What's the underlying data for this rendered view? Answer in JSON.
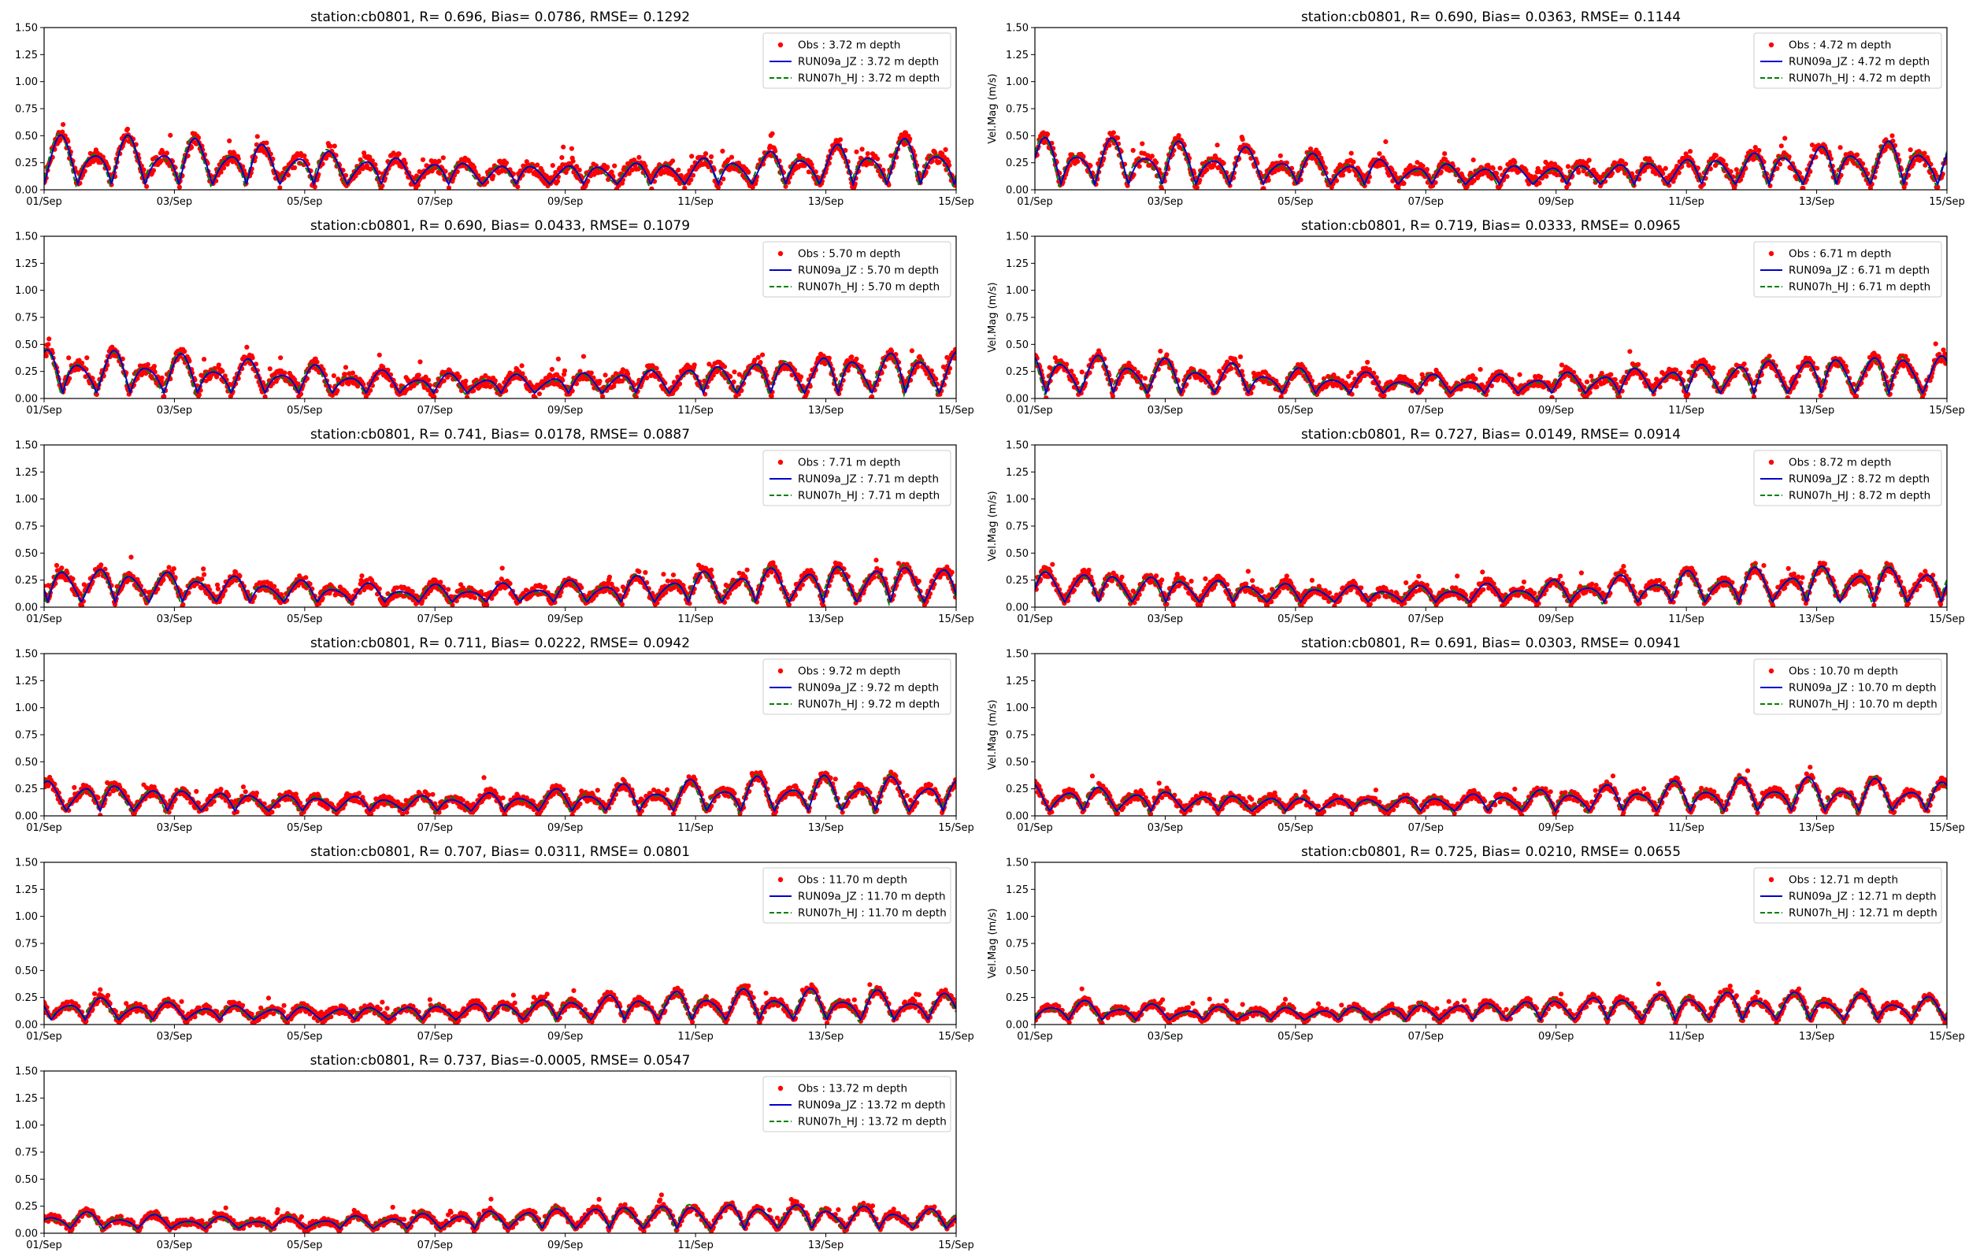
{
  "figure": {
    "background": "#ffffff"
  },
  "styles": {
    "obs_color": "#ff0000",
    "run09_color": "#0000cc",
    "run07_color": "#008000"
  },
  "chart_data": [
    {
      "type": "line",
      "title": "station:cb0801, R= 0.696, Bias= 0.0786, RMSE= 0.1292",
      "ylabel": "",
      "ylim": [
        0,
        1.5
      ],
      "yticks": [
        "0.00",
        "0.25",
        "0.50",
        "0.75",
        "1.00",
        "1.25",
        "1.50"
      ],
      "xticks": [
        "01/Sep",
        "03/Sep",
        "05/Sep",
        "07/Sep",
        "09/Sep",
        "11/Sep",
        "13/Sep",
        "15/Sep"
      ],
      "legend_position": "top-right",
      "series": [
        {
          "name": "Obs : 3.72 m depth",
          "style": "dots"
        },
        {
          "name": "RUN09a_JZ : 3.72 m depth",
          "style": "solid"
        },
        {
          "name": "RUN07h_HJ : 3.72 m depth",
          "style": "dashed"
        }
      ]
    },
    {
      "type": "line",
      "title": "station:cb0801, R= 0.690, Bias= 0.0363, RMSE= 0.1144",
      "ylabel": "Vel.Mag (m/s)",
      "ylim": [
        0,
        1.5
      ],
      "yticks": [
        "0.00",
        "0.25",
        "0.50",
        "0.75",
        "1.00",
        "1.25",
        "1.50"
      ],
      "xticks": [
        "01/Sep",
        "03/Sep",
        "05/Sep",
        "07/Sep",
        "09/Sep",
        "11/Sep",
        "13/Sep",
        "15/Sep"
      ],
      "legend_position": "top-right",
      "series": [
        {
          "name": "Obs : 4.72 m depth",
          "style": "dots"
        },
        {
          "name": "RUN09a_JZ : 4.72 m depth",
          "style": "solid"
        },
        {
          "name": "RUN07h_HJ : 4.72 m depth",
          "style": "dashed"
        }
      ]
    },
    {
      "type": "line",
      "title": "station:cb0801, R= 0.690, Bias= 0.0433, RMSE= 0.1079",
      "ylabel": "",
      "ylim": [
        0,
        1.5
      ],
      "yticks": [
        "0.00",
        "0.25",
        "0.50",
        "0.75",
        "1.00",
        "1.25",
        "1.50"
      ],
      "xticks": [
        "01/Sep",
        "03/Sep",
        "05/Sep",
        "07/Sep",
        "09/Sep",
        "11/Sep",
        "13/Sep",
        "15/Sep"
      ],
      "legend_position": "top-right",
      "series": [
        {
          "name": "Obs : 5.70 m depth",
          "style": "dots"
        },
        {
          "name": "RUN09a_JZ : 5.70 m depth",
          "style": "solid"
        },
        {
          "name": "RUN07h_HJ : 5.70 m depth",
          "style": "dashed"
        }
      ]
    },
    {
      "type": "line",
      "title": "station:cb0801, R= 0.719, Bias= 0.0333, RMSE= 0.0965",
      "ylabel": "Vel.Mag (m/s)",
      "ylim": [
        0,
        1.5
      ],
      "yticks": [
        "0.00",
        "0.25",
        "0.50",
        "0.75",
        "1.00",
        "1.25",
        "1.50"
      ],
      "xticks": [
        "01/Sep",
        "03/Sep",
        "05/Sep",
        "07/Sep",
        "09/Sep",
        "11/Sep",
        "13/Sep",
        "15/Sep"
      ],
      "legend_position": "top-right",
      "series": [
        {
          "name": "Obs : 6.71 m depth",
          "style": "dots"
        },
        {
          "name": "RUN09a_JZ : 6.71 m depth",
          "style": "solid"
        },
        {
          "name": "RUN07h_HJ : 6.71 m depth",
          "style": "dashed"
        }
      ]
    },
    {
      "type": "line",
      "title": "station:cb0801, R= 0.741, Bias= 0.0178, RMSE= 0.0887",
      "ylabel": "",
      "ylim": [
        0,
        1.5
      ],
      "yticks": [
        "0.00",
        "0.25",
        "0.50",
        "0.75",
        "1.00",
        "1.25",
        "1.50"
      ],
      "xticks": [
        "01/Sep",
        "03/Sep",
        "05/Sep",
        "07/Sep",
        "09/Sep",
        "11/Sep",
        "13/Sep",
        "15/Sep"
      ],
      "legend_position": "top-right",
      "series": [
        {
          "name": "Obs : 7.71 m depth",
          "style": "dots"
        },
        {
          "name": "RUN09a_JZ : 7.71 m depth",
          "style": "solid"
        },
        {
          "name": "RUN07h_HJ : 7.71 m depth",
          "style": "dashed"
        }
      ]
    },
    {
      "type": "line",
      "title": "station:cb0801, R= 0.727, Bias= 0.0149, RMSE= 0.0914",
      "ylabel": "Vel.Mag (m/s)",
      "ylim": [
        0,
        1.5
      ],
      "yticks": [
        "0.00",
        "0.25",
        "0.50",
        "0.75",
        "1.00",
        "1.25",
        "1.50"
      ],
      "xticks": [
        "01/Sep",
        "03/Sep",
        "05/Sep",
        "07/Sep",
        "09/Sep",
        "11/Sep",
        "13/Sep",
        "15/Sep"
      ],
      "legend_position": "top-right",
      "series": [
        {
          "name": "Obs : 8.72 m depth",
          "style": "dots"
        },
        {
          "name": "RUN09a_JZ : 8.72 m depth",
          "style": "solid"
        },
        {
          "name": "RUN07h_HJ : 8.72 m depth",
          "style": "dashed"
        }
      ]
    },
    {
      "type": "line",
      "title": "station:cb0801, R= 0.711, Bias= 0.0222, RMSE= 0.0942",
      "ylabel": "",
      "ylim": [
        0,
        1.5
      ],
      "yticks": [
        "0.00",
        "0.25",
        "0.50",
        "0.75",
        "1.00",
        "1.25",
        "1.50"
      ],
      "xticks": [
        "01/Sep",
        "03/Sep",
        "05/Sep",
        "07/Sep",
        "09/Sep",
        "11/Sep",
        "13/Sep",
        "15/Sep"
      ],
      "legend_position": "top-right",
      "series": [
        {
          "name": "Obs : 9.72 m depth",
          "style": "dots"
        },
        {
          "name": "RUN09a_JZ : 9.72 m depth",
          "style": "solid"
        },
        {
          "name": "RUN07h_HJ : 9.72 m depth",
          "style": "dashed"
        }
      ]
    },
    {
      "type": "line",
      "title": "station:cb0801, R= 0.691, Bias= 0.0303, RMSE= 0.0941",
      "ylabel": "Vel.Mag (m/s)",
      "ylim": [
        0,
        1.5
      ],
      "yticks": [
        "0.00",
        "0.25",
        "0.50",
        "0.75",
        "1.00",
        "1.25",
        "1.50"
      ],
      "xticks": [
        "01/Sep",
        "03/Sep",
        "05/Sep",
        "07/Sep",
        "09/Sep",
        "11/Sep",
        "13/Sep",
        "15/Sep"
      ],
      "legend_position": "top-right",
      "series": [
        {
          "name": "Obs : 10.70 m depth",
          "style": "dots"
        },
        {
          "name": "RUN09a_JZ : 10.70 m depth",
          "style": "solid"
        },
        {
          "name": "RUN07h_HJ : 10.70 m depth",
          "style": "dashed"
        }
      ]
    },
    {
      "type": "line",
      "title": "station:cb0801, R= 0.707, Bias= 0.0311, RMSE= 0.0801",
      "ylabel": "",
      "ylim": [
        0,
        1.5
      ],
      "yticks": [
        "0.00",
        "0.25",
        "0.50",
        "0.75",
        "1.00",
        "1.25",
        "1.50"
      ],
      "xticks": [
        "01/Sep",
        "03/Sep",
        "05/Sep",
        "07/Sep",
        "09/Sep",
        "11/Sep",
        "13/Sep",
        "15/Sep"
      ],
      "legend_position": "top-right",
      "series": [
        {
          "name": "Obs : 11.70 m depth",
          "style": "dots"
        },
        {
          "name": "RUN09a_JZ : 11.70 m depth",
          "style": "solid"
        },
        {
          "name": "RUN07h_HJ : 11.70 m depth",
          "style": "dashed"
        }
      ]
    },
    {
      "type": "line",
      "title": "station:cb0801, R= 0.725, Bias= 0.0210, RMSE= 0.0655",
      "ylabel": "Vel.Mag (m/s)",
      "ylim": [
        0,
        1.5
      ],
      "yticks": [
        "0.00",
        "0.25",
        "0.50",
        "0.75",
        "1.00",
        "1.25",
        "1.50"
      ],
      "xticks": [
        "01/Sep",
        "03/Sep",
        "05/Sep",
        "07/Sep",
        "09/Sep",
        "11/Sep",
        "13/Sep",
        "15/Sep"
      ],
      "legend_position": "top-right",
      "series": [
        {
          "name": "Obs : 12.71 m depth",
          "style": "dots"
        },
        {
          "name": "RUN09a_JZ : 12.71 m depth",
          "style": "solid"
        },
        {
          "name": "RUN07h_HJ : 12.71 m depth",
          "style": "dashed"
        }
      ]
    },
    {
      "type": "line",
      "title": "station:cb0801, R= 0.737, Bias=-0.0005, RMSE= 0.0547",
      "ylabel": "",
      "ylim": [
        0,
        1.5
      ],
      "yticks": [
        "0.00",
        "0.25",
        "0.50",
        "0.75",
        "1.00",
        "1.25",
        "1.50"
      ],
      "xticks": [
        "01/Sep",
        "03/Sep",
        "05/Sep",
        "07/Sep",
        "09/Sep",
        "11/Sep",
        "13/Sep",
        "15/Sep"
      ],
      "legend_position": "top-right",
      "series": [
        {
          "name": "Obs : 13.72 m depth",
          "style": "dots"
        },
        {
          "name": "RUN09a_JZ : 13.72 m depth",
          "style": "solid"
        },
        {
          "name": "RUN07h_HJ : 13.72 m depth",
          "style": "dashed"
        }
      ]
    }
  ]
}
